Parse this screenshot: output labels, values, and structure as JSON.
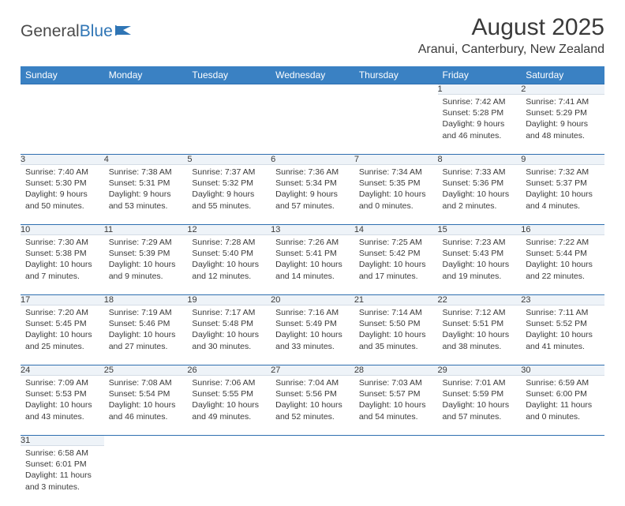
{
  "brand": {
    "part1": "General",
    "part2": "Blue"
  },
  "title": "August 2025",
  "location": "Aranui, Canterbury, New Zealand",
  "day_headers": [
    "Sunday",
    "Monday",
    "Tuesday",
    "Wednesday",
    "Thursday",
    "Friday",
    "Saturday"
  ],
  "colors": {
    "header_bg": "#3a81c3",
    "header_fg": "#ffffff",
    "daynum_bg": "#eef3f8",
    "rule": "#2f6fb0",
    "text": "#3a3a3a"
  },
  "weeks": [
    [
      null,
      null,
      null,
      null,
      null,
      {
        "n": "1",
        "sr": "Sunrise: 7:42 AM",
        "ss": "Sunset: 5:28 PM",
        "d1": "Daylight: 9 hours",
        "d2": "and 46 minutes."
      },
      {
        "n": "2",
        "sr": "Sunrise: 7:41 AM",
        "ss": "Sunset: 5:29 PM",
        "d1": "Daylight: 9 hours",
        "d2": "and 48 minutes."
      }
    ],
    [
      {
        "n": "3",
        "sr": "Sunrise: 7:40 AM",
        "ss": "Sunset: 5:30 PM",
        "d1": "Daylight: 9 hours",
        "d2": "and 50 minutes."
      },
      {
        "n": "4",
        "sr": "Sunrise: 7:38 AM",
        "ss": "Sunset: 5:31 PM",
        "d1": "Daylight: 9 hours",
        "d2": "and 53 minutes."
      },
      {
        "n": "5",
        "sr": "Sunrise: 7:37 AM",
        "ss": "Sunset: 5:32 PM",
        "d1": "Daylight: 9 hours",
        "d2": "and 55 minutes."
      },
      {
        "n": "6",
        "sr": "Sunrise: 7:36 AM",
        "ss": "Sunset: 5:34 PM",
        "d1": "Daylight: 9 hours",
        "d2": "and 57 minutes."
      },
      {
        "n": "7",
        "sr": "Sunrise: 7:34 AM",
        "ss": "Sunset: 5:35 PM",
        "d1": "Daylight: 10 hours",
        "d2": "and 0 minutes."
      },
      {
        "n": "8",
        "sr": "Sunrise: 7:33 AM",
        "ss": "Sunset: 5:36 PM",
        "d1": "Daylight: 10 hours",
        "d2": "and 2 minutes."
      },
      {
        "n": "9",
        "sr": "Sunrise: 7:32 AM",
        "ss": "Sunset: 5:37 PM",
        "d1": "Daylight: 10 hours",
        "d2": "and 4 minutes."
      }
    ],
    [
      {
        "n": "10",
        "sr": "Sunrise: 7:30 AM",
        "ss": "Sunset: 5:38 PM",
        "d1": "Daylight: 10 hours",
        "d2": "and 7 minutes."
      },
      {
        "n": "11",
        "sr": "Sunrise: 7:29 AM",
        "ss": "Sunset: 5:39 PM",
        "d1": "Daylight: 10 hours",
        "d2": "and 9 minutes."
      },
      {
        "n": "12",
        "sr": "Sunrise: 7:28 AM",
        "ss": "Sunset: 5:40 PM",
        "d1": "Daylight: 10 hours",
        "d2": "and 12 minutes."
      },
      {
        "n": "13",
        "sr": "Sunrise: 7:26 AM",
        "ss": "Sunset: 5:41 PM",
        "d1": "Daylight: 10 hours",
        "d2": "and 14 minutes."
      },
      {
        "n": "14",
        "sr": "Sunrise: 7:25 AM",
        "ss": "Sunset: 5:42 PM",
        "d1": "Daylight: 10 hours",
        "d2": "and 17 minutes."
      },
      {
        "n": "15",
        "sr": "Sunrise: 7:23 AM",
        "ss": "Sunset: 5:43 PM",
        "d1": "Daylight: 10 hours",
        "d2": "and 19 minutes."
      },
      {
        "n": "16",
        "sr": "Sunrise: 7:22 AM",
        "ss": "Sunset: 5:44 PM",
        "d1": "Daylight: 10 hours",
        "d2": "and 22 minutes."
      }
    ],
    [
      {
        "n": "17",
        "sr": "Sunrise: 7:20 AM",
        "ss": "Sunset: 5:45 PM",
        "d1": "Daylight: 10 hours",
        "d2": "and 25 minutes."
      },
      {
        "n": "18",
        "sr": "Sunrise: 7:19 AM",
        "ss": "Sunset: 5:46 PM",
        "d1": "Daylight: 10 hours",
        "d2": "and 27 minutes."
      },
      {
        "n": "19",
        "sr": "Sunrise: 7:17 AM",
        "ss": "Sunset: 5:48 PM",
        "d1": "Daylight: 10 hours",
        "d2": "and 30 minutes."
      },
      {
        "n": "20",
        "sr": "Sunrise: 7:16 AM",
        "ss": "Sunset: 5:49 PM",
        "d1": "Daylight: 10 hours",
        "d2": "and 33 minutes."
      },
      {
        "n": "21",
        "sr": "Sunrise: 7:14 AM",
        "ss": "Sunset: 5:50 PM",
        "d1": "Daylight: 10 hours",
        "d2": "and 35 minutes."
      },
      {
        "n": "22",
        "sr": "Sunrise: 7:12 AM",
        "ss": "Sunset: 5:51 PM",
        "d1": "Daylight: 10 hours",
        "d2": "and 38 minutes."
      },
      {
        "n": "23",
        "sr": "Sunrise: 7:11 AM",
        "ss": "Sunset: 5:52 PM",
        "d1": "Daylight: 10 hours",
        "d2": "and 41 minutes."
      }
    ],
    [
      {
        "n": "24",
        "sr": "Sunrise: 7:09 AM",
        "ss": "Sunset: 5:53 PM",
        "d1": "Daylight: 10 hours",
        "d2": "and 43 minutes."
      },
      {
        "n": "25",
        "sr": "Sunrise: 7:08 AM",
        "ss": "Sunset: 5:54 PM",
        "d1": "Daylight: 10 hours",
        "d2": "and 46 minutes."
      },
      {
        "n": "26",
        "sr": "Sunrise: 7:06 AM",
        "ss": "Sunset: 5:55 PM",
        "d1": "Daylight: 10 hours",
        "d2": "and 49 minutes."
      },
      {
        "n": "27",
        "sr": "Sunrise: 7:04 AM",
        "ss": "Sunset: 5:56 PM",
        "d1": "Daylight: 10 hours",
        "d2": "and 52 minutes."
      },
      {
        "n": "28",
        "sr": "Sunrise: 7:03 AM",
        "ss": "Sunset: 5:57 PM",
        "d1": "Daylight: 10 hours",
        "d2": "and 54 minutes."
      },
      {
        "n": "29",
        "sr": "Sunrise: 7:01 AM",
        "ss": "Sunset: 5:59 PM",
        "d1": "Daylight: 10 hours",
        "d2": "and 57 minutes."
      },
      {
        "n": "30",
        "sr": "Sunrise: 6:59 AM",
        "ss": "Sunset: 6:00 PM",
        "d1": "Daylight: 11 hours",
        "d2": "and 0 minutes."
      }
    ],
    [
      {
        "n": "31",
        "sr": "Sunrise: 6:58 AM",
        "ss": "Sunset: 6:01 PM",
        "d1": "Daylight: 11 hours",
        "d2": "and 3 minutes."
      },
      null,
      null,
      null,
      null,
      null,
      null
    ]
  ]
}
